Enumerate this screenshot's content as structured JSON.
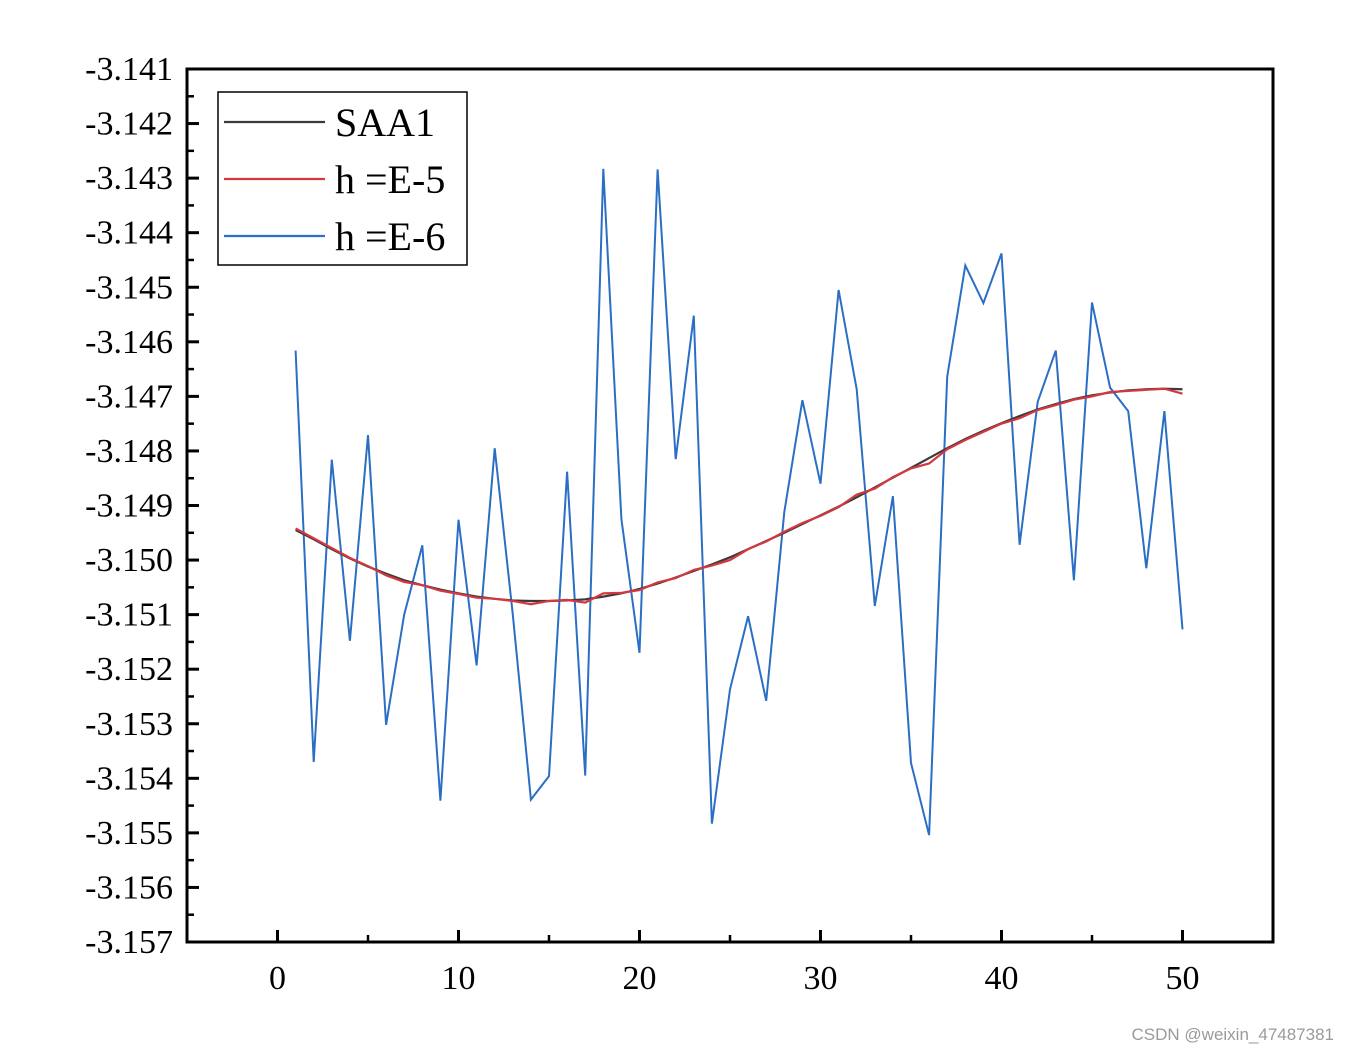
{
  "chart_data": {
    "type": "line",
    "title": "",
    "xlabel": "",
    "ylabel": "",
    "xlim": [
      -5,
      55
    ],
    "ylim": [
      -3.157,
      -3.141
    ],
    "x_ticks": [
      0,
      10,
      20,
      30,
      40,
      50
    ],
    "x_tick_labels": [
      "0",
      "10",
      "20",
      "30",
      "40",
      "50"
    ],
    "y_ticks": [
      -3.141,
      -3.142,
      -3.143,
      -3.144,
      -3.145,
      -3.146,
      -3.147,
      -3.148,
      -3.149,
      -3.15,
      -3.151,
      -3.152,
      -3.153,
      -3.154,
      -3.155,
      -3.156,
      -3.157
    ],
    "y_tick_labels": [
      "-3.141",
      "-3.142",
      "-3.143",
      "-3.144",
      "-3.145",
      "-3.146",
      "-3.147",
      "-3.148",
      "-3.149",
      "-3.150",
      "-3.151",
      "-3.152",
      "-3.153",
      "-3.154",
      "-3.155",
      "-3.156",
      "-3.157"
    ],
    "grid": false,
    "legend_position": "top-left",
    "x": [
      1,
      2,
      3,
      4,
      5,
      6,
      7,
      8,
      9,
      10,
      11,
      12,
      13,
      14,
      15,
      16,
      17,
      18,
      19,
      20,
      21,
      22,
      23,
      24,
      25,
      26,
      27,
      28,
      29,
      30,
      31,
      32,
      33,
      34,
      35,
      36,
      37,
      38,
      39,
      40,
      41,
      42,
      43,
      44,
      45,
      46,
      47,
      48,
      49,
      50
    ],
    "series": [
      {
        "name": "SAA1",
        "color": "#3a3a3a",
        "values": [
          -3.14945,
          -3.14962,
          -3.1498,
          -3.14997,
          -3.15012,
          -3.15025,
          -3.15037,
          -3.15046,
          -3.15054,
          -3.15061,
          -3.15067,
          -3.15071,
          -3.15074,
          -3.15075,
          -3.15075,
          -3.15074,
          -3.15072,
          -3.15067,
          -3.15061,
          -3.15053,
          -3.15043,
          -3.15032,
          -3.1502,
          -3.15008,
          -3.14995,
          -3.1498,
          -3.14965,
          -3.1495,
          -3.14934,
          -3.14918,
          -3.14902,
          -3.14885,
          -3.14867,
          -3.14849,
          -3.14831,
          -3.14813,
          -3.14795,
          -3.14778,
          -3.14763,
          -3.14749,
          -3.14736,
          -3.14724,
          -3.14714,
          -3.14705,
          -3.14698,
          -3.14693,
          -3.14689,
          -3.14687,
          -3.14686,
          -3.14687
        ]
      },
      {
        "name": "h =E-5",
        "color": "#d6373f",
        "values": [
          -3.14942,
          -3.1496,
          -3.14978,
          -3.14996,
          -3.15011,
          -3.15028,
          -3.1504,
          -3.15046,
          -3.15056,
          -3.15062,
          -3.15069,
          -3.15071,
          -3.15075,
          -3.15081,
          -3.15075,
          -3.15073,
          -3.15078,
          -3.15061,
          -3.1506,
          -3.15055,
          -3.15041,
          -3.15033,
          -3.15018,
          -3.1501,
          -3.15,
          -3.1498,
          -3.14966,
          -3.14948,
          -3.14932,
          -3.14919,
          -3.14903,
          -3.1488,
          -3.14869,
          -3.14848,
          -3.14832,
          -3.14823,
          -3.14797,
          -3.1478,
          -3.14765,
          -3.1475,
          -3.1474,
          -3.14725,
          -3.14716,
          -3.14706,
          -3.147,
          -3.14692,
          -3.1469,
          -3.14688,
          -3.14686,
          -3.14695
        ]
      },
      {
        "name": "h =E-6",
        "color": "#2a6fc4",
        "values": [
          -3.14616,
          -3.1537,
          -3.14816,
          -3.15148,
          -3.14771,
          -3.15302,
          -3.151,
          -3.14973,
          -3.15441,
          -3.14926,
          -3.15193,
          -3.14795,
          -3.151,
          -3.15439,
          -3.15396,
          -3.14838,
          -3.15395,
          -3.14283,
          -3.14925,
          -3.1517,
          -3.14284,
          -3.14815,
          -3.14552,
          -3.15483,
          -3.15237,
          -3.15103,
          -3.15258,
          -3.14912,
          -3.14707,
          -3.1486,
          -3.14505,
          -3.14687,
          -3.15084,
          -3.14883,
          -3.15372,
          -3.15504,
          -3.14664,
          -3.1446,
          -3.14529,
          -3.14438,
          -3.14972,
          -3.1471,
          -3.14616,
          -3.15037,
          -3.14528,
          -3.14684,
          -3.14727,
          -3.15015,
          -3.14727,
          -3.15127
        ]
      }
    ]
  },
  "watermark": "CSDN @weixin_47487381"
}
